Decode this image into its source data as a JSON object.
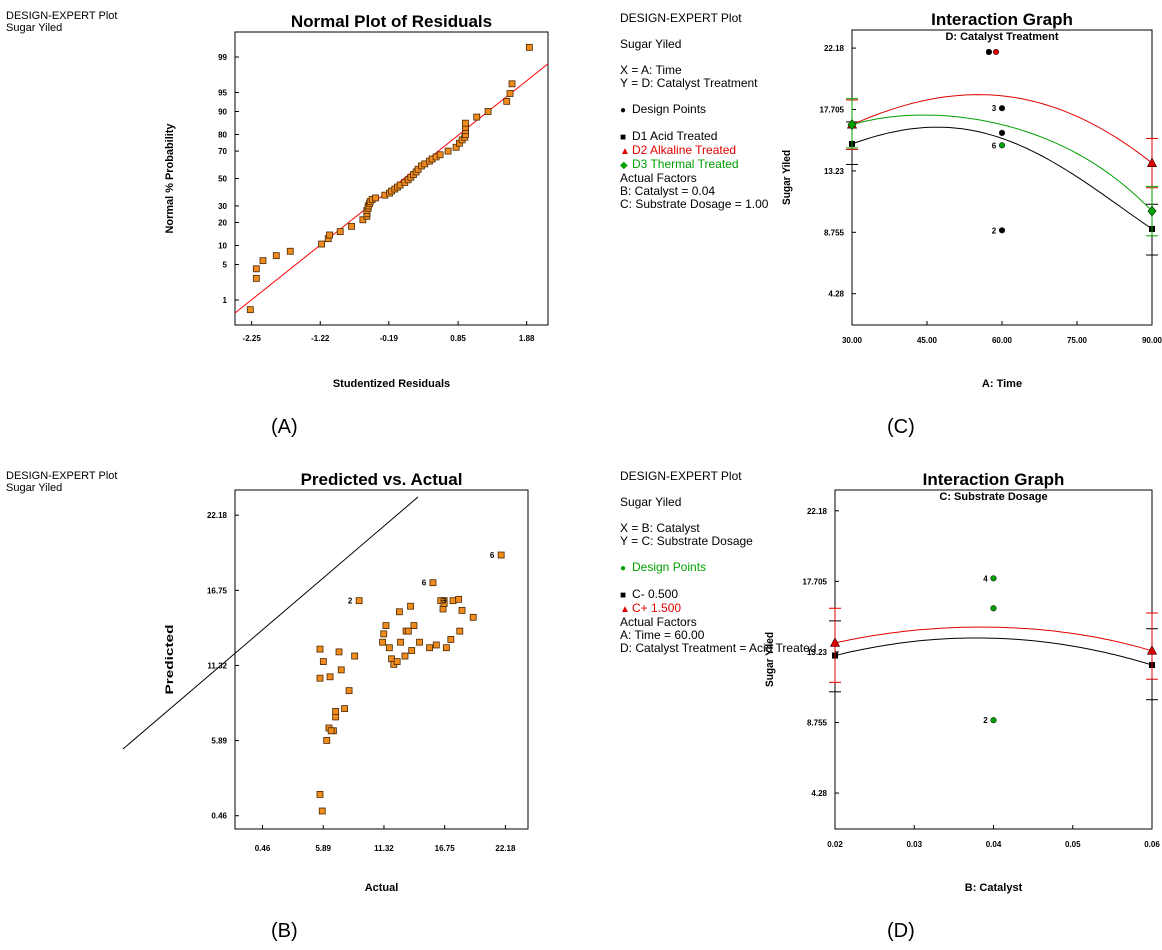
{
  "panels": [
    {
      "id": "A",
      "caption": "(A)",
      "info_lines": [
        "DESIGN-EXPERT Plot",
        "Sugar Yiled"
      ],
      "chart_data": {
        "type": "scatter",
        "title": "Normal Plot of Residuals",
        "xlabel": "Studentized Residuals",
        "ylabel": "Normal % Probability",
        "x_ticks": [
          "-2.25",
          "-1.22",
          "-0.19",
          "0.85",
          "1.88"
        ],
        "x_tick_values": [
          -2.25,
          -1.22,
          -0.19,
          0.85,
          1.88
        ],
        "y_ticks": [
          "1",
          "5",
          "10",
          "20",
          "30",
          "50",
          "70",
          "80",
          "90",
          "95",
          "99"
        ],
        "y_tick_values": [
          1,
          5,
          10,
          20,
          30,
          50,
          70,
          80,
          90,
          95,
          99
        ],
        "xlim": [
          -2.5,
          2.2
        ],
        "yaxis_scale": "normal-probability",
        "points": [
          [
            -2.27,
            0.6
          ],
          [
            -2.18,
            2.8
          ],
          [
            -2.18,
            4.2
          ],
          [
            -2.08,
            5.8
          ],
          [
            -1.88,
            7.0
          ],
          [
            -1.67,
            8.2
          ],
          [
            -1.2,
            10.5
          ],
          [
            -1.1,
            12.5
          ],
          [
            -1.08,
            14.0
          ],
          [
            -0.92,
            15.5
          ],
          [
            -0.75,
            18.0
          ],
          [
            -0.58,
            21.5
          ],
          [
            -0.52,
            23.5
          ],
          [
            -0.52,
            25.0
          ],
          [
            -0.52,
            27.0
          ],
          [
            -0.5,
            28.5
          ],
          [
            -0.5,
            30.0
          ],
          [
            -0.48,
            31.5
          ],
          [
            -0.47,
            33.0
          ],
          [
            -0.44,
            34.5
          ],
          [
            -0.39,
            35.5
          ],
          [
            -0.25,
            37.5
          ],
          [
            -0.18,
            39.0
          ],
          [
            -0.15,
            40.5
          ],
          [
            -0.1,
            42.0
          ],
          [
            -0.06,
            43.5
          ],
          [
            -0.02,
            45.0
          ],
          [
            0.05,
            47.0
          ],
          [
            0.1,
            49.0
          ],
          [
            0.14,
            51.0
          ],
          [
            0.18,
            53.0
          ],
          [
            0.22,
            55.0
          ],
          [
            0.25,
            57.0
          ],
          [
            0.3,
            59.5
          ],
          [
            0.35,
            61.0
          ],
          [
            0.42,
            63.0
          ],
          [
            0.46,
            64.5
          ],
          [
            0.52,
            66.0
          ],
          [
            0.58,
            67.5
          ],
          [
            0.7,
            70.0
          ],
          [
            0.82,
            72.5
          ],
          [
            0.87,
            75.0
          ],
          [
            0.91,
            77.0
          ],
          [
            0.95,
            78.5
          ],
          [
            0.96,
            80.0
          ],
          [
            0.96,
            82.0
          ],
          [
            0.96,
            83.5
          ],
          [
            0.96,
            85.5
          ],
          [
            1.13,
            88.0
          ],
          [
            1.3,
            90.0
          ],
          [
            1.58,
            93.0
          ],
          [
            1.63,
            94.8
          ],
          [
            1.66,
            96.5
          ],
          [
            1.92,
            99.4
          ]
        ],
        "reference_line": [
          [
            -2.5,
            0.5
          ],
          [
            2.2,
            98.6
          ]
        ],
        "colors": {
          "marker_fill": "#f08c1e",
          "marker_edge": "#4a2600",
          "line": "#ff0000"
        }
      }
    },
    {
      "id": "B",
      "caption": "(B)",
      "info_lines": [
        "DESIGN-EXPERT Plot",
        "Sugar Yiled"
      ],
      "chart_data": {
        "type": "scatter",
        "title": "Predicted vs. Actual",
        "xlabel": "Actual",
        "ylabel": "Predicted",
        "x_ticks": [
          "0.46",
          "5.89",
          "11.32",
          "16.75",
          "22.18"
        ],
        "x_tick_values": [
          0.46,
          5.89,
          11.32,
          16.75,
          22.18
        ],
        "y_ticks": [
          "0.46",
          "5.89",
          "11.32",
          "16.75",
          "22.18"
        ],
        "y_tick_values": [
          0.46,
          5.89,
          11.32,
          16.75,
          22.18
        ],
        "xlim": [
          -2.0,
          24.2
        ],
        "ylim": [
          -0.5,
          24.0
        ],
        "points": [
          [
            7.0,
            7.6
          ],
          [
            5.6,
            10.4
          ],
          [
            5.9,
            11.6
          ],
          [
            5.6,
            12.5
          ],
          [
            6.5,
            10.5
          ],
          [
            7.3,
            12.3
          ],
          [
            7.5,
            11.0
          ],
          [
            7.8,
            8.2
          ],
          [
            8.2,
            9.5
          ],
          [
            8.7,
            12.0
          ],
          [
            7.0,
            8.0
          ],
          [
            6.4,
            6.8
          ],
          [
            6.2,
            5.9
          ],
          [
            6.8,
            6.6
          ],
          [
            6.6,
            6.6
          ],
          [
            5.6,
            2.0
          ],
          [
            5.8,
            0.8
          ],
          [
            9.1,
            16.0
          ],
          [
            11.2,
            13.0
          ],
          [
            11.3,
            13.6
          ],
          [
            11.5,
            14.2
          ],
          [
            11.8,
            12.6
          ],
          [
            12.0,
            11.8
          ],
          [
            12.2,
            11.4
          ],
          [
            12.5,
            11.6
          ],
          [
            12.7,
            15.2
          ],
          [
            12.8,
            13.0
          ],
          [
            13.2,
            12.0
          ],
          [
            13.3,
            13.8
          ],
          [
            13.5,
            13.8
          ],
          [
            13.8,
            12.4
          ],
          [
            13.7,
            15.6
          ],
          [
            14.0,
            14.2
          ],
          [
            14.5,
            13.0
          ],
          [
            15.4,
            12.6
          ],
          [
            15.7,
            17.3
          ],
          [
            16.0,
            12.8
          ],
          [
            16.4,
            16.0
          ],
          [
            16.6,
            15.4
          ],
          [
            16.7,
            16.0
          ],
          [
            16.9,
            12.6
          ],
          [
            17.3,
            13.2
          ],
          [
            17.5,
            16.0
          ],
          [
            18.3,
            15.3
          ],
          [
            18.1,
            13.8
          ],
          [
            19.3,
            14.8
          ],
          [
            21.8,
            19.3
          ],
          [
            16.7,
            15.8
          ],
          [
            18.0,
            16.1
          ]
        ],
        "point_labels": [
          {
            "text": "2",
            "x": 9.1,
            "y": 16.0
          },
          {
            "text": "6",
            "x": 15.7,
            "y": 17.3
          },
          {
            "text": "3",
            "x": 17.5,
            "y": 16.0
          },
          {
            "text": "6",
            "x": 21.8,
            "y": 19.3
          }
        ],
        "reference_line": [
          [
            -2.0,
            -2.0
          ],
          [
            16.7,
            22.8
          ]
        ],
        "colors": {
          "marker_fill": "#f08c1e",
          "marker_edge": "#4a2600",
          "line": "#000000"
        }
      }
    },
    {
      "id": "C",
      "caption": "(C)",
      "info_lines": [
        {
          "text": "DESIGN-EXPERT Plot",
          "color": "#000000",
          "marker": ""
        },
        {
          "text": "",
          "color": "#000000",
          "marker": ""
        },
        {
          "text": "Sugar Yiled",
          "color": "#000000",
          "marker": ""
        },
        {
          "text": "",
          "color": "#000000",
          "marker": ""
        },
        {
          "text": "X = A: Time",
          "color": "#000000",
          "marker": ""
        },
        {
          "text": "Y = D: Catalyst Treatment",
          "color": "#000000",
          "marker": ""
        },
        {
          "text": "",
          "color": "#000000",
          "marker": ""
        },
        {
          "text": "Design Points",
          "color": "#000000",
          "marker": "●"
        },
        {
          "text": "",
          "color": "#000000",
          "marker": ""
        },
        {
          "text": "D1 Acid Treated",
          "color": "#000000",
          "marker": "■"
        },
        {
          "text": "D2 Alkaline Treated",
          "color": "#e00000",
          "marker": "▲"
        },
        {
          "text": "D3 Thermal Treated",
          "color": "#00a000",
          "marker": "◆"
        },
        {
          "text": "Actual Factors",
          "color": "#000000",
          "marker": ""
        },
        {
          "text": "B: Catalyst = 0.04",
          "color": "#000000",
          "marker": ""
        },
        {
          "text": "C: Substrate Dosage = 1.00",
          "color": "#000000",
          "marker": ""
        }
      ],
      "chart_data": {
        "type": "line",
        "title": "Interaction Graph",
        "subtitle": "D: Catalyst Treatment",
        "xlabel": "A: Time",
        "ylabel": "Sugar Yiled",
        "x_ticks": [
          "30.00",
          "45.00",
          "60.00",
          "75.00",
          "90.00"
        ],
        "x_tick_values": [
          30,
          45,
          60,
          75,
          90
        ],
        "y_ticks": [
          "4.28",
          "8.755",
          "13.23",
          "17.705",
          "22.18"
        ],
        "y_tick_values": [
          4.28,
          8.755,
          13.23,
          17.705,
          22.18
        ],
        "xlim": [
          30,
          90
        ],
        "ylim": [
          2.0,
          23.5
        ],
        "series": [
          {
            "name": "D1 Acid Treated",
            "color": "#000000",
            "marker": "square",
            "x": [
              30,
              45,
              60,
              75,
              90
            ],
            "values": [
              15.2,
              16.4,
              15.6,
              12.8,
              9.0
            ],
            "ends": [
              {
                "x": 30,
                "y": 15.2,
                "lo": 13.7,
                "hi": 16.8
              },
              {
                "x": 90,
                "y": 9.0,
                "lo": 7.1,
                "hi": 10.8
              }
            ]
          },
          {
            "name": "D2 Alkaline Treated",
            "color": "#e00000",
            "marker": "triangle",
            "x": [
              30,
              45,
              60,
              75,
              90
            ],
            "values": [
              16.6,
              18.4,
              18.7,
              17.2,
              13.8
            ],
            "ends": [
              {
                "x": 30,
                "y": 16.6,
                "lo": 14.8,
                "hi": 18.4
              },
              {
                "x": 90,
                "y": 13.8,
                "lo": 12.0,
                "hi": 15.6
              }
            ]
          },
          {
            "name": "D3 Thermal Treated",
            "color": "#00a000",
            "marker": "diamond",
            "x": [
              30,
              45,
              60,
              75,
              90
            ],
            "values": [
              16.6,
              17.3,
              16.6,
              14.5,
              10.3
            ],
            "ends": [
              {
                "x": 30,
                "y": 16.6,
                "lo": 14.9,
                "hi": 18.5
              },
              {
                "x": 90,
                "y": 10.3,
                "lo": 8.5,
                "hi": 12.1
              }
            ]
          }
        ],
        "design_points": [
          {
            "x": 60,
            "y": 21.9,
            "label": "6",
            "color": "#e00000",
            "dx": -6
          },
          {
            "x": 60,
            "y": 21.9,
            "label": "",
            "color": "#000000",
            "dx": -13
          },
          {
            "x": 60,
            "y": 17.8,
            "label": "3",
            "color": "#000000",
            "dx": 0
          },
          {
            "x": 60,
            "y": 16.0,
            "label": "",
            "color": "#000000",
            "dx": 0
          },
          {
            "x": 60,
            "y": 15.1,
            "label": "6",
            "color": "#00a000",
            "dx": 0
          },
          {
            "x": 60,
            "y": 8.9,
            "label": "2",
            "color": "#000000",
            "dx": 0
          }
        ]
      }
    },
    {
      "id": "D",
      "caption": "(D)",
      "info_lines": [
        {
          "text": "DESIGN-EXPERT Plot",
          "color": "#000000",
          "marker": ""
        },
        {
          "text": "",
          "color": "#000000",
          "marker": ""
        },
        {
          "text": "Sugar Yiled",
          "color": "#000000",
          "marker": ""
        },
        {
          "text": "",
          "color": "#000000",
          "marker": ""
        },
        {
          "text": "X = B: Catalyst",
          "color": "#000000",
          "marker": ""
        },
        {
          "text": "Y = C: Substrate Dosage",
          "color": "#000000",
          "marker": ""
        },
        {
          "text": "",
          "color": "#000000",
          "marker": ""
        },
        {
          "text": "Design Points",
          "color": "#00a000",
          "marker": "●"
        },
        {
          "text": "",
          "color": "#000000",
          "marker": ""
        },
        {
          "text": "C- 0.500",
          "color": "#000000",
          "marker": "■"
        },
        {
          "text": "C+ 1.500",
          "color": "#e00000",
          "marker": "▲"
        },
        {
          "text": "Actual Factors",
          "color": "#000000",
          "marker": ""
        },
        {
          "text": "A: Time = 60.00",
          "color": "#000000",
          "marker": ""
        },
        {
          "text": "D: Catalyst Treatment = Acid Treated",
          "color": "#000000",
          "marker": ""
        }
      ],
      "chart_data": {
        "type": "line",
        "title": "Interaction Graph",
        "subtitle": "C: Substrate Dosage",
        "xlabel": "B: Catalyst",
        "ylabel": "Sugar Yiled",
        "x_ticks": [
          "0.02",
          "0.03",
          "0.04",
          "0.05",
          "0.06"
        ],
        "x_tick_values": [
          0.02,
          0.03,
          0.04,
          0.05,
          0.06
        ],
        "y_ticks": [
          "4.28",
          "8.755",
          "13.23",
          "17.705",
          "22.18"
        ],
        "y_tick_values": [
          4.28,
          8.755,
          13.23,
          17.705,
          22.18
        ],
        "xlim": [
          0.02,
          0.06
        ],
        "ylim": [
          2.0,
          23.5
        ],
        "series": [
          {
            "name": "C- 0.500",
            "color": "#000000",
            "marker": "square",
            "x": [
              0.02,
              0.03,
              0.04,
              0.05,
              0.06
            ],
            "values": [
              13.0,
              13.9,
              14.1,
              13.6,
              12.4
            ],
            "ends": [
              {
                "x": 0.02,
                "y": 13.0,
                "lo": 10.7,
                "hi": 15.2
              },
              {
                "x": 0.06,
                "y": 12.4,
                "lo": 10.2,
                "hi": 14.7
              }
            ]
          },
          {
            "name": "C+ 1.500",
            "color": "#e00000",
            "marker": "triangle",
            "x": [
              0.02,
              0.03,
              0.04,
              0.05,
              0.06
            ],
            "values": [
              13.8,
              14.6,
              14.8,
              14.4,
              13.3
            ],
            "ends": [
              {
                "x": 0.02,
                "y": 13.8,
                "lo": 11.3,
                "hi": 16.0
              },
              {
                "x": 0.06,
                "y": 13.3,
                "lo": 11.5,
                "hi": 15.7
              }
            ]
          }
        ],
        "design_points": [
          {
            "x": 0.04,
            "y": 17.9,
            "label": "4",
            "color": "#00a000",
            "dx": 0
          },
          {
            "x": 0.04,
            "y": 16.0,
            "label": "",
            "color": "#00a000",
            "dx": 0
          },
          {
            "x": 0.04,
            "y": 8.9,
            "label": "2",
            "color": "#00a000",
            "dx": 0
          }
        ]
      }
    }
  ]
}
